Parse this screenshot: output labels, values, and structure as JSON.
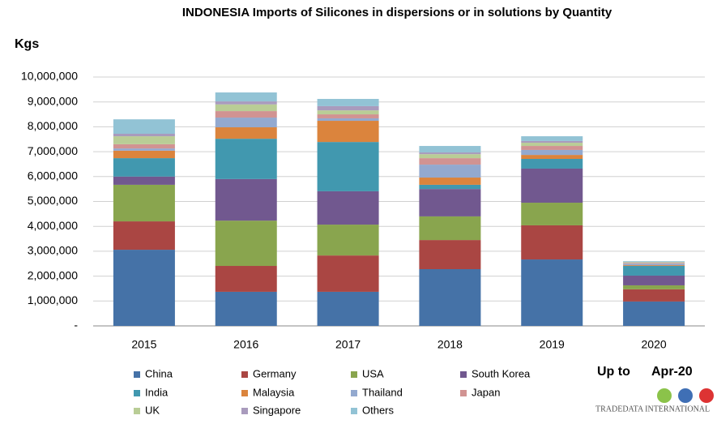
{
  "chart_data": {
    "type": "stacked_bar",
    "title": "INDONESIA Imports of Silicones in dispersions or in solutions by Quantity",
    "y_label": "Kgs",
    "annotations": [
      "Up to",
      "Apr-20",
      "TRADEDATA INTERNATIONAL"
    ],
    "categories": [
      "2015",
      "2016",
      "2017",
      "2018",
      "2019",
      "2020"
    ],
    "ylim": [
      0,
      10000000
    ],
    "yticks": [
      {
        "value": 0,
        "label": "-"
      },
      {
        "value": 1000000,
        "label": "1,000,000"
      },
      {
        "value": 2000000,
        "label": "2,000,000"
      },
      {
        "value": 3000000,
        "label": "3,000,000"
      },
      {
        "value": 4000000,
        "label": "4,000,000"
      },
      {
        "value": 5000000,
        "label": "5,000,000"
      },
      {
        "value": 6000000,
        "label": "6,000,000"
      },
      {
        "value": 7000000,
        "label": "7,000,000"
      },
      {
        "value": 8000000,
        "label": "8,000,000"
      },
      {
        "value": 9000000,
        "label": "9,000,000"
      },
      {
        "value": 10000000,
        "label": "10,000,000"
      }
    ],
    "grid": true,
    "legend": "bottom",
    "series": [
      {
        "name": "China",
        "color": "#4572a7",
        "values": [
          3060000,
          1370000,
          1370000,
          2280000,
          2670000,
          980000
        ]
      },
      {
        "name": "Germany",
        "color": "#aa4643",
        "values": [
          1140000,
          1040000,
          1460000,
          1170000,
          1370000,
          490000
        ]
      },
      {
        "name": "USA",
        "color": "#89a54e",
        "values": [
          1470000,
          1820000,
          1240000,
          950000,
          910000,
          160000
        ]
      },
      {
        "name": "South Korea",
        "color": "#71588f",
        "values": [
          330000,
          1670000,
          1340000,
          1100000,
          1370000,
          390000
        ]
      },
      {
        "name": "India",
        "color": "#4198af",
        "values": [
          740000,
          1620000,
          1980000,
          170000,
          390000,
          390000
        ]
      },
      {
        "name": "Malaysia",
        "color": "#db843d",
        "values": [
          300000,
          460000,
          850000,
          290000,
          160000,
          30000
        ]
      },
      {
        "name": "Thailand",
        "color": "#93a9cf",
        "values": [
          90000,
          390000,
          100000,
          520000,
          200000,
          60000
        ]
      },
      {
        "name": "Japan",
        "color": "#d19392",
        "values": [
          170000,
          260000,
          160000,
          260000,
          160000,
          30000
        ]
      },
      {
        "name": "UK",
        "color": "#b9cd96",
        "values": [
          320000,
          270000,
          160000,
          160000,
          130000,
          30000
        ]
      },
      {
        "name": "Singapore",
        "color": "#a99bbd",
        "values": [
          100000,
          120000,
          170000,
          70000,
          70000,
          10000
        ]
      },
      {
        "name": "Others",
        "color": "#92c3d5",
        "values": [
          580000,
          360000,
          290000,
          260000,
          190000,
          30000
        ]
      }
    ]
  }
}
